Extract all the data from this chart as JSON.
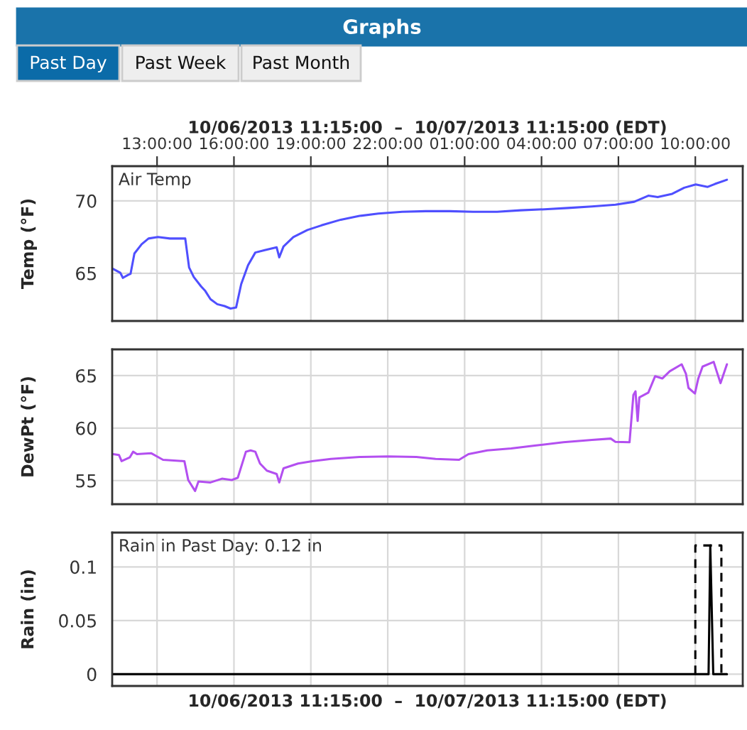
{
  "chart_data": [
    {
      "type": "line",
      "title": "Graphs",
      "ylabel": "Temp (°F)",
      "xlabel": "10/06/2013 11:15:00  –  10/07/2013 11:15:00 (EDT)",
      "annotations": [
        "Past Day",
        "Past Week",
        "Past Month",
        "Air Temp"
      ],
      "x": [
        "2013-10-06T11:17",
        "2013-10-06T11:34",
        "2013-10-06T11:40",
        "2013-10-06T11:53",
        "2013-10-06T11:58",
        "2013-10-06T12:07",
        "2013-10-06T12:24",
        "2013-10-06T12:40",
        "2013-10-06T13:02",
        "2013-10-06T13:30",
        "2013-10-06T14:06",
        "2013-10-06T14:15",
        "2013-10-06T14:26",
        "2013-10-06T14:43",
        "2013-10-06T14:53",
        "2013-10-06T15:05",
        "2013-10-06T15:21",
        "2013-10-06T15:38",
        "2013-10-06T15:52",
        "2013-10-06T16:05",
        "2013-10-06T16:17",
        "2013-10-06T16:33",
        "2013-10-06T16:50",
        "2013-10-06T17:12",
        "2013-10-06T17:40",
        "2013-10-06T17:46",
        "2013-10-06T17:56",
        "2013-10-06T18:19",
        "2013-10-06T18:52",
        "2013-10-06T19:25",
        "2013-10-06T20:10",
        "2013-10-06T20:54",
        "2013-10-06T21:38",
        "2013-10-06T22:34",
        "2013-10-06T23:29",
        "2013-10-07T00:25",
        "2013-10-07T01:20",
        "2013-10-07T02:16",
        "2013-10-07T03:11",
        "2013-10-07T04:07",
        "2013-10-07T05:02",
        "2013-10-07T05:58",
        "2013-10-07T06:53",
        "2013-10-07T07:37",
        "2013-10-07T08:10",
        "2013-10-07T08:32",
        "2013-10-07T09:06",
        "2013-10-07T09:34",
        "2013-10-07T10:01",
        "2013-10-07T10:29",
        "2013-10-07T10:46",
        "2013-10-07T11:14"
      ],
      "series": [
        {
          "color": "#4f4fff",
          "values": [
            65.3,
            65.03,
            64.68,
            64.9,
            64.96,
            66.36,
            67.01,
            67.4,
            67.5,
            67.4,
            67.4,
            65.4,
            64.74,
            64.09,
            63.77,
            63.21,
            62.86,
            62.73,
            62.56,
            62.63,
            64.25,
            65.55,
            66.43,
            66.6,
            66.79,
            66.1,
            66.85,
            67.5,
            67.99,
            68.31,
            68.7,
            68.96,
            69.12,
            69.25,
            69.29,
            69.29,
            69.25,
            69.25,
            69.35,
            69.42,
            69.51,
            69.61,
            69.74,
            69.94,
            70.36,
            70.26,
            70.49,
            70.91,
            71.14,
            70.97,
            71.17,
            71.46
          ]
        }
      ],
      "xlim": [
        "2013-10-06T11:15",
        "2013-10-07T11:51"
      ],
      "ylim": [
        61.7,
        72.4
      ],
      "yticks": [
        65,
        70
      ],
      "xticks": [
        {
          "value": "2013-10-06T13:00",
          "label": "13:00:00"
        },
        {
          "value": "2013-10-06T16:00",
          "label": "16:00:00"
        },
        {
          "value": "2013-10-06T19:00",
          "label": "19:00:00"
        },
        {
          "value": "2013-10-06T22:00",
          "label": "22:00:00"
        },
        {
          "value": "2013-10-07T01:00",
          "label": "01:00:00"
        },
        {
          "value": "2013-10-07T04:00",
          "label": "04:00:00"
        },
        {
          "value": "2013-10-07T07:00",
          "label": "07:00:00"
        },
        {
          "value": "2013-10-07T10:00",
          "label": "10:00:00"
        }
      ],
      "grid": true
    },
    {
      "type": "line",
      "ylabel": "DewPt (°F)",
      "x": [
        "2013-10-06T11:17",
        "2013-10-06T11:31",
        "2013-10-06T11:37",
        "2013-10-06T11:56",
        "2013-10-06T12:04",
        "2013-10-06T12:13",
        "2013-10-06T12:46",
        "2013-10-06T13:02",
        "2013-10-06T13:14",
        "2013-10-06T14:04",
        "2013-10-06T14:13",
        "2013-10-06T14:29",
        "2013-10-06T14:37",
        "2013-10-06T15:05",
        "2013-10-06T15:32",
        "2013-10-06T15:55",
        "2013-10-06T16:09",
        "2013-10-06T16:28",
        "2013-10-06T16:39",
        "2013-10-06T16:50",
        "2013-10-06T17:01",
        "2013-10-06T17:17",
        "2013-10-06T17:40",
        "2013-10-06T17:46",
        "2013-10-06T17:56",
        "2013-10-06T18:30",
        "2013-10-06T19:03",
        "2013-10-06T19:47",
        "2013-10-06T20:54",
        "2013-10-06T22:01",
        "2013-10-06T23:07",
        "2013-10-06T23:52",
        "2013-10-07T00:47",
        "2013-10-07T01:09",
        "2013-10-07T01:53",
        "2013-10-07T02:49",
        "2013-10-07T03:44",
        "2013-10-07T04:51",
        "2013-10-07T05:58",
        "2013-10-07T06:42",
        "2013-10-07T06:53",
        "2013-10-07T07:26",
        "2013-10-07T07:35",
        "2013-10-07T07:40",
        "2013-10-07T07:45",
        "2013-10-07T07:49",
        "2013-10-07T08:10",
        "2013-10-07T08:26",
        "2013-10-07T08:43",
        "2013-10-07T09:00",
        "2013-10-07T09:28",
        "2013-10-07T09:38",
        "2013-10-07T09:44",
        "2013-10-07T09:59",
        "2013-10-07T10:07",
        "2013-10-07T10:17",
        "2013-10-07T10:43",
        "2013-10-07T10:50",
        "2013-10-07T10:59",
        "2013-10-07T11:14"
      ],
      "series": [
        {
          "color": "#b34ff0",
          "values": [
            57.52,
            57.43,
            56.85,
            57.2,
            57.75,
            57.52,
            57.61,
            57.25,
            56.98,
            56.85,
            55.05,
            54.01,
            54.91,
            54.82,
            55.18,
            55.05,
            55.27,
            57.75,
            57.88,
            57.75,
            56.62,
            55.95,
            55.63,
            54.82,
            56.17,
            56.62,
            56.85,
            57.07,
            57.25,
            57.3,
            57.25,
            57.07,
            56.98,
            57.52,
            57.88,
            58.06,
            58.33,
            58.65,
            58.87,
            59.0,
            58.69,
            58.65,
            63.15,
            63.5,
            60.68,
            62.93,
            63.38,
            64.95,
            64.73,
            65.41,
            66.08,
            65.18,
            63.83,
            63.29,
            64.73,
            65.86,
            66.31,
            65.41,
            64.28,
            66.08
          ]
        }
      ],
      "xlim": [
        "2013-10-06T11:15",
        "2013-10-07T11:51"
      ],
      "ylim": [
        52.75,
        67.5
      ],
      "yticks": [
        55,
        60,
        65
      ],
      "xticks": [
        {
          "value": "2013-10-06T13:00",
          "label": null
        },
        {
          "value": "2013-10-06T16:00",
          "label": null
        },
        {
          "value": "2013-10-06T19:00",
          "label": null
        },
        {
          "value": "2013-10-06T22:00",
          "label": null
        },
        {
          "value": "2013-10-07T01:00",
          "label": null
        },
        {
          "value": "2013-10-07T04:00",
          "label": null
        },
        {
          "value": "2013-10-07T07:00",
          "label": null
        },
        {
          "value": "2013-10-07T10:00",
          "label": null
        }
      ],
      "tick_labels": "y",
      "grid": true
    },
    {
      "type": "line",
      "ylabel": "Rain (in)",
      "xlabel": "10/06/2013 11:15:00  –  10/07/2013 11:15:00 (EDT)",
      "annotations": [
        "Rain in Past Day: 0.12 in"
      ],
      "series": [
        {
          "color": "#000000",
          "x": [
            "2013-10-06T11:15",
            "2013-10-07T10:31",
            "2013-10-07T10:35",
            "2013-10-07T10:42",
            "2013-10-07T11:14"
          ],
          "values": [
            0,
            0,
            0.12,
            0,
            0
          ]
        },
        {
          "color": "#000000",
          "line_style": "dashed",
          "x": [
            "2013-10-07T10:00",
            "2013-10-07T10:00",
            "2013-10-07T11:01",
            "2013-10-07T11:01"
          ],
          "values": [
            0,
            0.12,
            0.12,
            0
          ]
        }
      ],
      "xlim": [
        "2013-10-06T11:15",
        "2013-10-07T11:51"
      ],
      "ylim": [
        -0.011,
        0.132
      ],
      "yticks": [
        0,
        0.05,
        0.1
      ],
      "xticks": [
        {
          "value": "2013-10-06T13:00",
          "label": null
        },
        {
          "value": "2013-10-06T16:00",
          "label": null
        },
        {
          "value": "2013-10-06T19:00",
          "label": null
        },
        {
          "value": "2013-10-06T22:00",
          "label": null
        },
        {
          "value": "2013-10-07T01:00",
          "label": null
        },
        {
          "value": "2013-10-07T04:00",
          "label": null
        },
        {
          "value": "2013-10-07T07:00",
          "label": null
        },
        {
          "value": "2013-10-07T10:00",
          "label": null
        }
      ],
      "tick_labels": "y",
      "grid": true
    }
  ]
}
